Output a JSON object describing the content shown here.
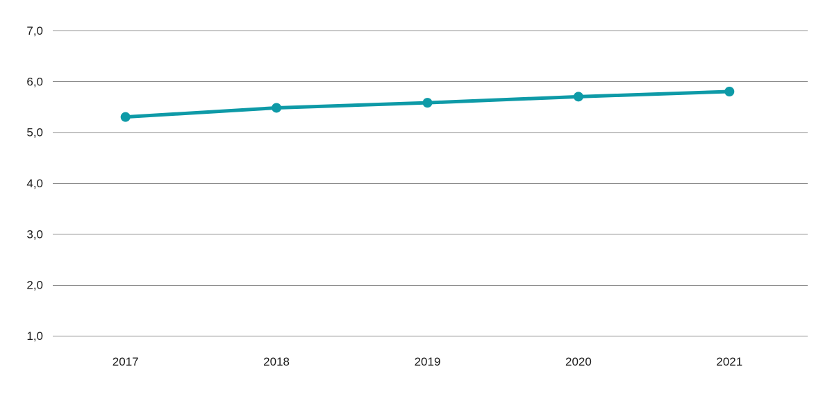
{
  "chart_data": {
    "type": "line",
    "categories": [
      "2017",
      "2018",
      "2019",
      "2020",
      "2021"
    ],
    "series": [
      {
        "values": [
          5.3,
          5.48,
          5.58,
          5.7,
          5.8
        ],
        "color": "#0e9aa7"
      }
    ],
    "y_ticks": [
      1,
      2,
      3,
      4,
      5,
      6,
      7
    ],
    "y_tick_labels": [
      "1,0",
      "2,0",
      "3,0",
      "4,0",
      "5,0",
      "6,0",
      "7,0"
    ],
    "ylim": [
      1,
      7
    ],
    "grid": true,
    "legend": "none",
    "title": "",
    "xlabel": "",
    "ylabel": ""
  }
}
